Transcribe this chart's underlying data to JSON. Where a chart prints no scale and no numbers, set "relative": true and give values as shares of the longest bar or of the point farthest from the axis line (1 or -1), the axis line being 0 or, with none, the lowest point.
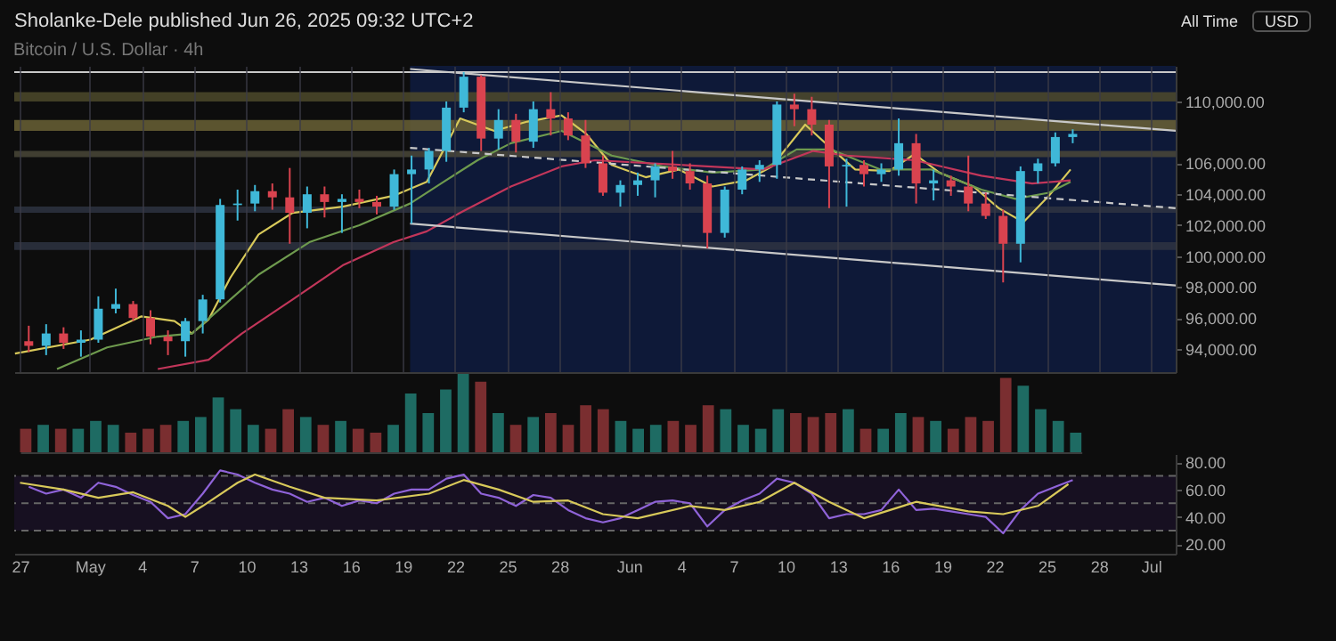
{
  "chart_data": [
    {
      "type": "candlestick",
      "title": "Bitcoin / U.S. Dollar · 4h",
      "annotations": [
        "Sholanke-Dele published Jun 26, 2025 09:32 UTC+2",
        "All Time",
        "USD"
      ],
      "x": [
        "2025-04-27T12:00",
        "2025-04-28T12:00",
        "2025-04-29T12:00",
        "2025-04-30T12:00",
        "2025-05-01T12:00",
        "2025-05-02T12:00",
        "2025-05-03T12:00",
        "2025-05-04T12:00",
        "2025-05-05T12:00",
        "2025-05-06T12:00",
        "2025-05-07T12:00",
        "2025-05-08T12:00",
        "2025-05-09T12:00",
        "2025-05-10T12:00",
        "2025-05-11T12:00",
        "2025-05-12T12:00",
        "2025-05-13T12:00",
        "2025-05-14T12:00",
        "2025-05-15T12:00",
        "2025-05-16T12:00",
        "2025-05-17T12:00",
        "2025-05-18T12:00",
        "2025-05-19T12:00",
        "2025-05-20T12:00",
        "2025-05-21T12:00",
        "2025-05-22T12:00",
        "2025-05-23T12:00",
        "2025-05-24T12:00",
        "2025-05-25T12:00",
        "2025-05-26T12:00",
        "2025-05-27T12:00",
        "2025-05-28T12:00",
        "2025-05-29T12:00",
        "2025-05-30T12:00",
        "2025-05-31T12:00",
        "2025-06-01T12:00",
        "2025-06-02T12:00",
        "2025-06-03T12:00",
        "2025-06-04T12:00",
        "2025-06-05T12:00",
        "2025-06-06T12:00",
        "2025-06-07T12:00",
        "2025-06-08T12:00",
        "2025-06-09T12:00",
        "2025-06-10T12:00",
        "2025-06-11T12:00",
        "2025-06-12T12:00",
        "2025-06-13T12:00",
        "2025-06-14T12:00",
        "2025-06-15T12:00",
        "2025-06-16T12:00",
        "2025-06-17T12:00",
        "2025-06-18T12:00",
        "2025-06-19T12:00",
        "2025-06-20T12:00",
        "2025-06-21T12:00",
        "2025-06-22T12:00",
        "2025-06-23T12:00",
        "2025-06-24T12:00",
        "2025-06-25T12:00",
        "2025-06-26T12:00"
      ],
      "ohlc": [
        [
          94500,
          95500,
          93800,
          94200
        ],
        [
          94200,
          95600,
          93600,
          95000
        ],
        [
          95000,
          95400,
          94000,
          94400
        ],
        [
          94400,
          95200,
          93500,
          94600
        ],
        [
          94600,
          97400,
          94400,
          96600
        ],
        [
          96600,
          97900,
          96300,
          96900
        ],
        [
          96900,
          97100,
          95800,
          96000
        ],
        [
          96000,
          96500,
          94300,
          94800
        ],
        [
          94800,
          95200,
          93600,
          94500
        ],
        [
          94500,
          96000,
          93500,
          95800
        ],
        [
          95800,
          97500,
          95000,
          97200
        ],
        [
          97200,
          103700,
          97000,
          103300
        ],
        [
          103300,
          104300,
          102300,
          103400
        ],
        [
          103400,
          104600,
          102900,
          104200
        ],
        [
          104200,
          104700,
          103000,
          103800
        ],
        [
          103800,
          105700,
          100800,
          102800
        ],
        [
          102800,
          104500,
          101800,
          104000
        ],
        [
          104000,
          104500,
          102500,
          103500
        ],
        [
          103500,
          104000,
          101500,
          103700
        ],
        [
          103700,
          104300,
          103100,
          103500
        ],
        [
          103500,
          103900,
          102700,
          103200
        ],
        [
          103200,
          105600,
          103000,
          105300
        ],
        [
          105300,
          106500,
          102100,
          105600
        ],
        [
          105600,
          107000,
          104700,
          106800
        ],
        [
          106800,
          110000,
          106100,
          109600
        ],
        [
          109600,
          111900,
          109300,
          111600
        ],
        [
          111600,
          111700,
          106800,
          107600
        ],
        [
          107600,
          109500,
          106900,
          108800
        ],
        [
          108800,
          109200,
          106700,
          107400
        ],
        [
          107400,
          110000,
          107000,
          109500
        ],
        [
          109500,
          110600,
          107800,
          108900
        ],
        [
          108900,
          109300,
          107500,
          107800
        ],
        [
          107800,
          108800,
          105700,
          106000
        ],
        [
          106000,
          106500,
          103900,
          104100
        ],
        [
          104100,
          104900,
          103200,
          104600
        ],
        [
          104600,
          105400,
          103900,
          104900
        ],
        [
          104900,
          106000,
          103800,
          105800
        ],
        [
          105800,
          106800,
          105000,
          105500
        ],
        [
          105500,
          106000,
          104300,
          104700
        ],
        [
          104700,
          105200,
          100500,
          101500
        ],
        [
          101500,
          104500,
          101200,
          104300
        ],
        [
          104300,
          105800,
          104000,
          105600
        ],
        [
          105600,
          106200,
          104800,
          105900
        ],
        [
          105900,
          110000,
          105000,
          109800
        ],
        [
          109800,
          110500,
          108400,
          109500
        ],
        [
          109500,
          110300,
          107800,
          108500
        ],
        [
          108500,
          108800,
          103100,
          105800
        ],
        [
          105800,
          106300,
          103200,
          105900
        ],
        [
          105900,
          106200,
          104500,
          105300
        ],
        [
          105300,
          106000,
          104800,
          105600
        ],
        [
          105600,
          108900,
          105200,
          107300
        ],
        [
          107300,
          107900,
          103400,
          104700
        ],
        [
          104700,
          105600,
          103600,
          104900
        ],
        [
          104900,
          105200,
          103900,
          104500
        ],
        [
          104500,
          106500,
          102900,
          103400
        ],
        [
          103400,
          104100,
          102400,
          102600
        ],
        [
          102600,
          103000,
          98300,
          100800
        ],
        [
          100800,
          105800,
          99600,
          105500
        ],
        [
          105500,
          106300,
          104700,
          106000
        ],
        [
          106000,
          108000,
          105800,
          107700
        ],
        [
          107700,
          108200,
          107300,
          107900
        ]
      ],
      "series": [
        {
          "type": "line",
          "color": "#d8c95a",
          "x": [
            "2025-04-26T17:00",
            "2025-05-01T01:00",
            "2025-05-03T23:00",
            "2025-05-05T21:00",
            "2025-05-06T21:00",
            "2025-05-07T20:00",
            "2025-05-09T02:00",
            "2025-05-10T17:00",
            "2025-05-12T16:00",
            "2025-05-15T13:00",
            "2025-05-18T11:00",
            "2025-05-20T09:00",
            "2025-05-22T07:00",
            "2025-05-24T06:00",
            "2025-05-26T04:00",
            "2025-05-28T03:00",
            "2025-05-29T13:00",
            "2025-05-31T00:00",
            "2025-06-01T23:00",
            "2025-06-03T21:00",
            "2025-06-05T19:00",
            "2025-06-07T18:00",
            "2025-06-09T05:00",
            "2025-06-11T03:00",
            "2025-06-12T14:00",
            "2025-06-14T00:00",
            "2025-06-15T23:00",
            "2025-06-17T10:00",
            "2025-06-18T20:00",
            "2025-06-20T19:00",
            "2025-06-22T06:00",
            "2025-06-23T16:00",
            "2025-06-25T03:00",
            "2025-06-26T09:00"
          ],
          "values": [
            93700,
            94600,
            96100,
            95800,
            95000,
            95900,
            98600,
            101400,
            102800,
            103200,
            103900,
            104800,
            108900,
            108100,
            108700,
            109100,
            107900,
            105900,
            105100,
            105600,
            104500,
            104900,
            105800,
            108500,
            107000,
            105600,
            105500,
            106600,
            105400,
            104500,
            103100,
            102200,
            103900,
            105600
          ]
        },
        {
          "type": "line",
          "color": "#6e9a4e",
          "x": [
            "2025-04-29T03:00",
            "2025-05-02T00:00",
            "2025-05-04T22:00",
            "2025-05-06T21:00",
            "2025-05-08T19:00",
            "2025-05-10T17:00",
            "2025-05-13T15:00",
            "2025-05-16T12:00",
            "2025-05-19T10:00",
            "2025-05-21T08:00",
            "2025-05-23T07:00",
            "2025-05-25T05:00",
            "2025-05-28T03:00",
            "2025-05-31T00:00",
            "2025-06-02T22:00",
            "2025-06-05T19:00",
            "2025-06-08T17:00",
            "2025-06-10T15:00",
            "2025-06-12T14:00",
            "2025-06-15T11:00",
            "2025-06-18T09:00",
            "2025-06-21T06:00",
            "2025-06-23T05:00",
            "2025-06-25T03:00",
            "2025-06-26T09:00"
          ],
          "values": [
            92700,
            94100,
            94800,
            95000,
            96900,
            98800,
            100900,
            102000,
            103400,
            104800,
            106200,
            107300,
            108100,
            106500,
            105800,
            105400,
            105600,
            106900,
            106900,
            105600,
            105600,
            104300,
            103700,
            104100,
            104800
          ]
        },
        {
          "type": "line",
          "color": "#c2365a",
          "x": [
            "2025-05-04T22:00",
            "2025-05-07T20:00",
            "2025-05-09T18:00",
            "2025-05-12T16:00",
            "2025-05-15T13:00",
            "2025-05-18T11:00",
            "2025-05-20T09:00",
            "2025-05-22T07:00",
            "2025-05-25T05:00",
            "2025-05-28T03:00",
            "2025-05-30T01:00",
            "2025-06-03T21:00",
            "2025-06-08T17:00",
            "2025-06-11T14:00",
            "2025-06-13T13:00",
            "2025-06-17T10:00",
            "2025-06-21T06:00",
            "2025-06-24T04:00",
            "2025-06-26T09:00"
          ],
          "values": [
            92700,
            93300,
            95000,
            97200,
            99400,
            100900,
            101600,
            102800,
            104500,
            105800,
            106200,
            105900,
            105600,
            106800,
            106500,
            106200,
            105200,
            104700,
            104900
          ]
        },
        {
          "type": "line",
          "color": "#c8c8c8",
          "x": [
            "2025-05-19T10:00",
            "2025-07-02T10:00"
          ],
          "values": [
            112100,
            108100
          ]
        },
        {
          "type": "line",
          "color": "#c8c8c8",
          "line_style": "dashed",
          "x": [
            "2025-05-19T10:00",
            "2025-07-02T10:00"
          ],
          "values": [
            107000,
            103100
          ]
        },
        {
          "type": "line",
          "color": "#c8c8c8",
          "x": [
            "2025-05-19T10:00",
            "2025-07-02T10:00"
          ],
          "values": [
            102100,
            98100
          ]
        }
      ],
      "bands": [
        {
          "axis": "x",
          "from": "2025-05-19T10:00",
          "to": "2025-07-02T10:00",
          "color": "#0e1938"
        },
        {
          "axis": "y",
          "from": 110000,
          "to": 110600,
          "color": "#4d4a2c"
        },
        {
          "axis": "y",
          "from": 108100,
          "to": 108800,
          "color": "#6a6236"
        },
        {
          "axis": "y",
          "from": 106400,
          "to": 106800,
          "color": "#4a4838"
        },
        {
          "axis": "y",
          "from": 102800,
          "to": 103200,
          "color": "#2e3442"
        },
        {
          "axis": "y",
          "from": 100400,
          "to": 100900,
          "color": "#2e3442"
        }
      ],
      "ref_lines": [
        {
          "axis": "y",
          "value": 111900,
          "color": "#c8c8c8"
        }
      ],
      "xlim": [
        "2025-04-26T16:00",
        "2025-07-02T10:00"
      ],
      "xticks": [
        {
          "value": "2025-04-27",
          "label": null
        },
        {
          "value": "2025-05-01",
          "label": null
        },
        {
          "value": "2025-05-04",
          "label": null
        },
        {
          "value": "2025-05-07",
          "label": null
        },
        {
          "value": "2025-05-10",
          "label": null
        },
        {
          "value": "2025-05-13",
          "label": null
        },
        {
          "value": "2025-05-16",
          "label": null
        },
        {
          "value": "2025-05-19",
          "label": null
        },
        {
          "value": "2025-05-22",
          "label": null
        },
        {
          "value": "2025-05-25",
          "label": null
        },
        {
          "value": "2025-05-28",
          "label": null
        },
        {
          "value": "2025-06-01",
          "label": null
        },
        {
          "value": "2025-06-04",
          "label": null
        },
        {
          "value": "2025-06-07",
          "label": null
        },
        {
          "value": "2025-06-10",
          "label": null
        },
        {
          "value": "2025-06-13",
          "label": null
        },
        {
          "value": "2025-06-16",
          "label": null
        },
        {
          "value": "2025-06-19",
          "label": null
        },
        {
          "value": "2025-06-22",
          "label": null
        },
        {
          "value": "2025-06-25",
          "label": null
        },
        {
          "value": "2025-06-28",
          "label": null
        },
        {
          "value": "2025-07-01",
          "label": null
        }
      ],
      "ylim": [
        92500,
        112300
      ],
      "yticks": [
        {
          "value": 94000,
          "label": "94,000.00"
        },
        {
          "value": 96000,
          "label": "96,000.00"
        },
        {
          "value": 98000,
          "label": "98,000.00"
        },
        {
          "value": 100000,
          "label": "100,000.00"
        },
        {
          "value": 102000,
          "label": "102,000.00"
        },
        {
          "value": 104000,
          "label": "104,000.00"
        },
        {
          "value": 106000,
          "label": "106,000.00"
        },
        {
          "value": 110000,
          "label": "110,000.00"
        }
      ],
      "grid": "x",
      "tick_labels": "y"
    },
    {
      "type": "bar",
      "relative": true,
      "tick_labels": false,
      "categories": [
        null,
        null,
        null,
        null,
        null,
        null,
        null,
        null,
        null,
        null,
        null,
        null,
        null,
        null,
        null,
        null,
        null,
        null,
        null,
        null,
        null,
        null,
        null,
        null,
        null,
        null,
        null,
        null,
        null,
        null,
        null,
        null,
        null,
        null,
        null,
        null,
        null,
        null,
        null,
        null,
        null,
        null,
        null,
        null,
        null,
        null,
        null,
        null,
        null,
        null,
        null,
        null,
        null,
        null,
        null,
        null,
        null,
        null,
        null,
        null,
        null
      ],
      "values": [
        0.3,
        0.35,
        0.3,
        0.3,
        0.4,
        0.35,
        0.25,
        0.3,
        0.35,
        0.4,
        0.45,
        0.7,
        0.55,
        0.35,
        0.3,
        0.55,
        0.45,
        0.35,
        0.4,
        0.3,
        0.25,
        0.35,
        0.75,
        0.5,
        0.8,
        1,
        0.9,
        0.5,
        0.35,
        0.45,
        0.5,
        0.35,
        0.6,
        0.55,
        0.4,
        0.3,
        0.35,
        0.4,
        0.35,
        0.6,
        0.55,
        0.35,
        0.3,
        0.55,
        0.5,
        0.45,
        0.5,
        0.55,
        0.3,
        0.3,
        0.5,
        0.45,
        0.4,
        0.3,
        0.45,
        0.4,
        0.95,
        0.85,
        0.55,
        0.4,
        0.25
      ],
      "colors": [
        "#7a2e30",
        "#1e6b63",
        "#7a2e30",
        "#1e6b63",
        "#1e6b63",
        "#1e6b63",
        "#7a2e30",
        "#7a2e30",
        "#7a2e30",
        "#1e6b63",
        "#1e6b63",
        "#1e6b63",
        "#1e6b63",
        "#1e6b63",
        "#7a2e30",
        "#7a2e30",
        "#1e6b63",
        "#7a2e30",
        "#1e6b63",
        "#7a2e30",
        "#7a2e30",
        "#1e6b63",
        "#1e6b63",
        "#1e6b63",
        "#1e6b63",
        "#1e6b63",
        "#7a2e30",
        "#1e6b63",
        "#7a2e30",
        "#1e6b63",
        "#7a2e30",
        "#7a2e30",
        "#7a2e30",
        "#7a2e30",
        "#1e6b63",
        "#1e6b63",
        "#1e6b63",
        "#7a2e30",
        "#7a2e30",
        "#7a2e30",
        "#1e6b63",
        "#1e6b63",
        "#1e6b63",
        "#1e6b63",
        "#7a2e30",
        "#7a2e30",
        "#7a2e30",
        "#1e6b63",
        "#7a2e30",
        "#1e6b63",
        "#1e6b63",
        "#7a2e30",
        "#1e6b63",
        "#7a2e30",
        "#7a2e30",
        "#7a2e30",
        "#7a2e30",
        "#1e6b63",
        "#1e6b63",
        "#1e6b63",
        "#1e6b63"
      ]
    },
    {
      "type": "line",
      "x": [
        "2025-04-27T12:00",
        "2025-04-28T12:00",
        "2025-04-29T12:00",
        "2025-04-30T12:00",
        "2025-05-01T12:00",
        "2025-05-02T12:00",
        "2025-05-03T12:00",
        "2025-05-04T12:00",
        "2025-05-05T12:00",
        "2025-05-06T12:00",
        "2025-05-07T12:00",
        "2025-05-08T12:00",
        "2025-05-09T12:00",
        "2025-05-10T12:00",
        "2025-05-11T12:00",
        "2025-05-12T12:00",
        "2025-05-13T12:00",
        "2025-05-14T12:00",
        "2025-05-15T12:00",
        "2025-05-16T12:00",
        "2025-05-17T12:00",
        "2025-05-18T12:00",
        "2025-05-19T12:00",
        "2025-05-20T12:00",
        "2025-05-21T12:00",
        "2025-05-22T12:00",
        "2025-05-23T12:00",
        "2025-05-24T12:00",
        "2025-05-25T12:00",
        "2025-05-26T12:00",
        "2025-05-27T12:00",
        "2025-05-28T12:00",
        "2025-05-29T12:00",
        "2025-05-30T12:00",
        "2025-05-31T12:00",
        "2025-06-01T12:00",
        "2025-06-02T12:00",
        "2025-06-03T12:00",
        "2025-06-04T12:00",
        "2025-06-05T12:00",
        "2025-06-06T12:00",
        "2025-06-07T12:00",
        "2025-06-08T12:00",
        "2025-06-09T12:00",
        "2025-06-10T12:00",
        "2025-06-11T12:00",
        "2025-06-12T12:00",
        "2025-06-13T12:00",
        "2025-06-14T12:00",
        "2025-06-15T12:00",
        "2025-06-16T12:00",
        "2025-06-17T12:00",
        "2025-06-18T12:00",
        "2025-06-19T12:00",
        "2025-06-20T12:00",
        "2025-06-21T12:00",
        "2025-06-22T12:00",
        "2025-06-23T12:00",
        "2025-06-24T12:00",
        "2025-06-25T12:00",
        "2025-06-26T12:00"
      ],
      "series": [
        {
          "color": "#8f63d8",
          "values": [
            62,
            57,
            60,
            54,
            65,
            62,
            56,
            51,
            39,
            42,
            57,
            74,
            71,
            65,
            60,
            57,
            51,
            54,
            48,
            52,
            50,
            57,
            60,
            60,
            68,
            71,
            57,
            54,
            48,
            56,
            54,
            45,
            39,
            36,
            39,
            45,
            51,
            52,
            50,
            33,
            45,
            52,
            57,
            68,
            65,
            57,
            39,
            42,
            42,
            45,
            60,
            45,
            46,
            44,
            42,
            40,
            28,
            45,
            57,
            62,
            67
          ]
        },
        {
          "color": "#d8c95a",
          "x": [
            "2025-04-27T00:00",
            "2025-04-29T12:00",
            "2025-05-01T12:00",
            "2025-05-03T12:00",
            "2025-05-05T12:00",
            "2025-05-06T12:00",
            "2025-05-07T12:00",
            "2025-05-09T12:00",
            "2025-05-10T12:00",
            "2025-05-12T12:00",
            "2025-05-14T12:00",
            "2025-05-17T12:00",
            "2025-05-20T12:00",
            "2025-05-22T12:00",
            "2025-05-24T12:00",
            "2025-05-26T12:00",
            "2025-05-28T12:00",
            "2025-05-30T12:00",
            "2025-06-01T12:00",
            "2025-06-04T12:00",
            "2025-06-06T12:00",
            "2025-06-08T12:00",
            "2025-06-10T12:00",
            "2025-06-12T12:00",
            "2025-06-14T12:00",
            "2025-06-17T12:00",
            "2025-06-20T12:00",
            "2025-06-22T12:00",
            "2025-06-24T12:00",
            "2025-06-26T06:00"
          ],
          "values": [
            65,
            60,
            54,
            58,
            48,
            40,
            48,
            65,
            71,
            62,
            54,
            52,
            57,
            67,
            60,
            51,
            52,
            42,
            39,
            48,
            45,
            51,
            65,
            51,
            39,
            51,
            44,
            42,
            48,
            64
          ]
        }
      ],
      "bands": [
        {
          "axis": "y",
          "from": 30,
          "to": 70,
          "color": "#1a1226"
        }
      ],
      "ref_lines": [
        {
          "axis": "y",
          "value": 70,
          "color": "#666666",
          "line_style": "dashed"
        },
        {
          "axis": "y",
          "value": 50,
          "color": "#666666",
          "line_style": "dashed"
        },
        {
          "axis": "y",
          "value": 30,
          "color": "#666666",
          "line_style": "dashed"
        }
      ],
      "xlim": [
        "2025-04-26T16:00",
        "2025-07-02T10:00"
      ],
      "xticks": [
        {
          "value": "2025-04-27",
          "label": "27"
        },
        {
          "value": "2025-05-01",
          "label": "May"
        },
        {
          "value": "2025-05-04",
          "label": "4"
        },
        {
          "value": "2025-05-07",
          "label": "7"
        },
        {
          "value": "2025-05-10",
          "label": "10"
        },
        {
          "value": "2025-05-13",
          "label": "13"
        },
        {
          "value": "2025-05-16",
          "label": "16"
        },
        {
          "value": "2025-05-19",
          "label": "19"
        },
        {
          "value": "2025-05-22",
          "label": "22"
        },
        {
          "value": "2025-05-25",
          "label": "25"
        },
        {
          "value": "2025-05-28",
          "label": "28"
        },
        {
          "value": "2025-06-01",
          "label": "Jun"
        },
        {
          "value": "2025-06-04",
          "label": "4"
        },
        {
          "value": "2025-06-07",
          "label": "7"
        },
        {
          "value": "2025-06-10",
          "label": "10"
        },
        {
          "value": "2025-06-13",
          "label": "13"
        },
        {
          "value": "2025-06-16",
          "label": "16"
        },
        {
          "value": "2025-06-19",
          "label": "19"
        },
        {
          "value": "2025-06-22",
          "label": "22"
        },
        {
          "value": "2025-06-25",
          "label": "25"
        },
        {
          "value": "2025-06-28",
          "label": "28"
        },
        {
          "value": "2025-07-01",
          "label": "Jul"
        }
      ],
      "ylim": [
        13,
        86
      ],
      "yticks": [
        {
          "value": 20,
          "label": "20.00"
        },
        {
          "value": 40,
          "label": "40.00"
        },
        {
          "value": 60,
          "label": "60.00"
        },
        {
          "value": 80,
          "label": "80.00"
        }
      ]
    }
  ]
}
